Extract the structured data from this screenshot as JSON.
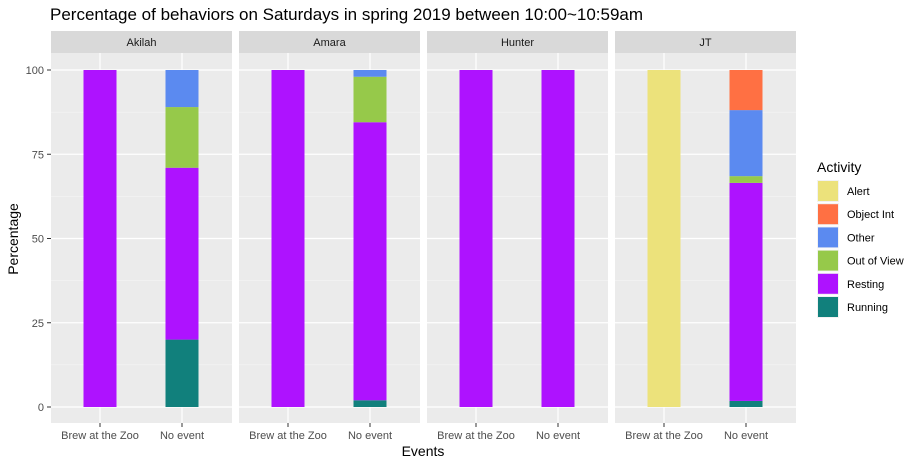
{
  "chart_data": {
    "type": "bar",
    "stacked": true,
    "faceted": true,
    "title": "Percentage of behaviors on Saturdays in spring 2019 between 10:00~10:59am",
    "xlabel": "Events",
    "ylabel": "Percentage",
    "ylim": [
      0,
      100
    ],
    "yticks": [
      0,
      25,
      50,
      75,
      100
    ],
    "categories": [
      "Brew at the Zoo",
      "No event"
    ],
    "legend": {
      "title": "Activity",
      "placement": "right",
      "entries": [
        {
          "name": "Alert",
          "color": "#ECE27B"
        },
        {
          "name": "Object Int",
          "color": "#FF7043"
        },
        {
          "name": "Other",
          "color": "#5B8AF0"
        },
        {
          "name": "Out of View",
          "color": "#96C94A"
        },
        {
          "name": "Resting",
          "color": "#AE12FF"
        },
        {
          "name": "Running",
          "color": "#11807C"
        }
      ]
    },
    "stack_order": [
      "Running",
      "Resting",
      "Out of View",
      "Other",
      "Object Int",
      "Alert"
    ],
    "facets": [
      {
        "name": "Akilah",
        "bars": [
          {
            "category": "Brew at the Zoo",
            "segments": {
              "Resting": 100
            }
          },
          {
            "category": "No event",
            "segments": {
              "Running": 20,
              "Resting": 51,
              "Out of View": 18,
              "Other": 11
            }
          }
        ]
      },
      {
        "name": "Amara",
        "bars": [
          {
            "category": "Brew at the Zoo",
            "segments": {
              "Resting": 100
            }
          },
          {
            "category": "No event",
            "segments": {
              "Running": 2,
              "Resting": 82.5,
              "Out of View": 13.5,
              "Other": 2
            }
          }
        ]
      },
      {
        "name": "Hunter",
        "bars": [
          {
            "category": "Brew at the Zoo",
            "segments": {
              "Resting": 100
            }
          },
          {
            "category": "No event",
            "segments": {
              "Resting": 100
            }
          }
        ]
      },
      {
        "name": "JT",
        "bars": [
          {
            "category": "Brew at the Zoo",
            "segments": {
              "Alert": 100
            }
          },
          {
            "category": "No event",
            "segments": {
              "Running": 1.8,
              "Resting": 64.7,
              "Out of View": 2,
              "Other": 19.6,
              "Object Int": 11.9
            }
          }
        ]
      }
    ]
  }
}
